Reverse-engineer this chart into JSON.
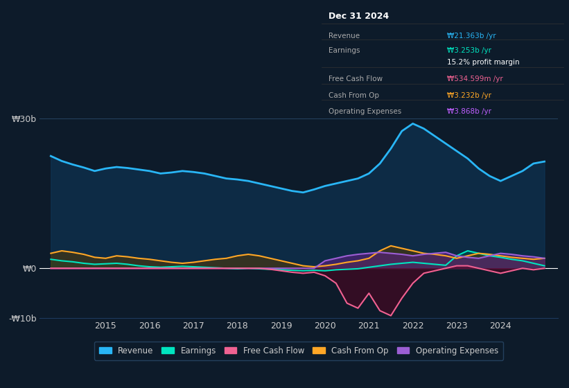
{
  "bg_color": "#0d1b2a",
  "plot_bg_color": "#0d1b2a",
  "grid_color": "#1e3a5f",
  "text_color": "#cccccc",
  "title_box": {
    "date": "Dec 31 2024",
    "rows": [
      {
        "label": "Revenue",
        "value": "₩21.363b /yr",
        "value_color": "#29b6f6"
      },
      {
        "label": "Earnings",
        "value": "₩3.253b /yr",
        "value_color": "#00e5c0"
      },
      {
        "label": "",
        "value": "15.2% profit margin",
        "value_color": "#ffffff"
      },
      {
        "label": "Free Cash Flow",
        "value": "₩534.599m /yr",
        "value_color": "#f06292"
      },
      {
        "label": "Cash From Op",
        "value": "₩3.232b /yr",
        "value_color": "#ffa726"
      },
      {
        "label": "Operating Expenses",
        "value": "₩3.868b /yr",
        "value_color": "#bf5fff"
      }
    ]
  },
  "ylim": [
    -10,
    32
  ],
  "yticks": [
    -10,
    0,
    30
  ],
  "ytick_labels": [
    "-₩10b",
    "₩0",
    "₩30b"
  ],
  "xlim_start": 2013.5,
  "xlim_end": 2025.3,
  "xticks": [
    2015,
    2016,
    2017,
    2018,
    2019,
    2020,
    2021,
    2022,
    2023,
    2024
  ],
  "revenue_color": "#29b6f6",
  "earnings_color": "#00e5c0",
  "fcf_color": "#f06292",
  "cashop_color": "#ffa726",
  "opex_color": "#9c5fd4",
  "legend": [
    {
      "label": "Revenue",
      "color": "#29b6f6"
    },
    {
      "label": "Earnings",
      "color": "#00e5c0"
    },
    {
      "label": "Free Cash Flow",
      "color": "#f06292"
    },
    {
      "label": "Cash From Op",
      "color": "#ffa726"
    },
    {
      "label": "Operating Expenses",
      "color": "#9c5fd4"
    }
  ],
  "revenue": {
    "x": [
      2013.75,
      2014.0,
      2014.25,
      2014.5,
      2014.75,
      2015.0,
      2015.25,
      2015.5,
      2015.75,
      2016.0,
      2016.25,
      2016.5,
      2016.75,
      2017.0,
      2017.25,
      2017.5,
      2017.75,
      2018.0,
      2018.25,
      2018.5,
      2018.75,
      2019.0,
      2019.25,
      2019.5,
      2019.75,
      2020.0,
      2020.25,
      2020.5,
      2020.75,
      2021.0,
      2021.25,
      2021.5,
      2021.75,
      2022.0,
      2022.25,
      2022.5,
      2022.75,
      2023.0,
      2023.25,
      2023.5,
      2023.75,
      2024.0,
      2024.25,
      2024.5,
      2024.75,
      2025.0
    ],
    "y": [
      22.5,
      21.5,
      20.8,
      20.2,
      19.5,
      20.0,
      20.3,
      20.1,
      19.8,
      19.5,
      19.0,
      19.2,
      19.5,
      19.3,
      19.0,
      18.5,
      18.0,
      17.8,
      17.5,
      17.0,
      16.5,
      16.0,
      15.5,
      15.2,
      15.8,
      16.5,
      17.0,
      17.5,
      18.0,
      19.0,
      21.0,
      24.0,
      27.5,
      29.0,
      28.0,
      26.5,
      25.0,
      23.5,
      22.0,
      20.0,
      18.5,
      17.5,
      18.5,
      19.5,
      21.0,
      21.4
    ]
  },
  "earnings": {
    "x": [
      2013.75,
      2014.0,
      2014.25,
      2014.5,
      2014.75,
      2015.0,
      2015.25,
      2015.5,
      2015.75,
      2016.0,
      2016.25,
      2016.5,
      2016.75,
      2017.0,
      2017.25,
      2017.5,
      2017.75,
      2018.0,
      2018.25,
      2018.5,
      2018.75,
      2019.0,
      2019.25,
      2019.5,
      2019.75,
      2020.0,
      2020.25,
      2020.5,
      2020.75,
      2021.0,
      2021.25,
      2021.5,
      2021.75,
      2022.0,
      2022.25,
      2022.5,
      2022.75,
      2023.0,
      2023.25,
      2023.5,
      2023.75,
      2024.0,
      2024.25,
      2024.5,
      2024.75,
      2025.0
    ],
    "y": [
      1.8,
      1.5,
      1.3,
      1.0,
      0.8,
      0.9,
      1.0,
      0.8,
      0.5,
      0.3,
      0.2,
      0.3,
      0.4,
      0.3,
      0.2,
      0.1,
      0.0,
      -0.1,
      0.0,
      -0.1,
      -0.2,
      -0.3,
      -0.4,
      -0.5,
      -0.4,
      -0.5,
      -0.3,
      -0.2,
      -0.1,
      0.2,
      0.5,
      0.8,
      1.0,
      1.2,
      1.0,
      0.8,
      0.6,
      2.5,
      3.5,
      3.0,
      2.5,
      2.2,
      1.8,
      1.5,
      1.0,
      0.5
    ]
  },
  "fcf": {
    "x": [
      2013.75,
      2014.0,
      2014.25,
      2014.5,
      2014.75,
      2015.0,
      2015.25,
      2015.5,
      2015.75,
      2016.0,
      2016.25,
      2016.5,
      2016.75,
      2017.0,
      2017.25,
      2017.5,
      2017.75,
      2018.0,
      2018.25,
      2018.5,
      2018.75,
      2019.0,
      2019.25,
      2019.5,
      2019.75,
      2020.0,
      2020.25,
      2020.5,
      2020.75,
      2021.0,
      2021.25,
      2021.5,
      2021.75,
      2022.0,
      2022.25,
      2022.5,
      2022.75,
      2023.0,
      2023.25,
      2023.5,
      2023.75,
      2024.0,
      2024.25,
      2024.5,
      2024.75,
      2025.0
    ],
    "y": [
      0.0,
      0.0,
      0.0,
      0.0,
      0.0,
      0.0,
      0.0,
      0.0,
      0.0,
      0.0,
      0.0,
      0.0,
      0.0,
      0.0,
      0.0,
      0.0,
      0.0,
      0.0,
      0.0,
      0.0,
      -0.2,
      -0.5,
      -0.8,
      -1.0,
      -0.8,
      -1.5,
      -3.0,
      -7.0,
      -8.0,
      -5.0,
      -8.5,
      -9.5,
      -6.0,
      -3.0,
      -1.0,
      -0.5,
      0.0,
      0.5,
      0.5,
      0.0,
      -0.5,
      -1.0,
      -0.5,
      0.0,
      -0.3,
      0.0
    ]
  },
  "cashop": {
    "x": [
      2013.75,
      2014.0,
      2014.25,
      2014.5,
      2014.75,
      2015.0,
      2015.25,
      2015.5,
      2015.75,
      2016.0,
      2016.25,
      2016.5,
      2016.75,
      2017.0,
      2017.25,
      2017.5,
      2017.75,
      2018.0,
      2018.25,
      2018.5,
      2018.75,
      2019.0,
      2019.25,
      2019.5,
      2019.75,
      2020.0,
      2020.25,
      2020.5,
      2020.75,
      2021.0,
      2021.25,
      2021.5,
      2021.75,
      2022.0,
      2022.25,
      2022.5,
      2022.75,
      2023.0,
      2023.25,
      2023.5,
      2023.75,
      2024.0,
      2024.25,
      2024.5,
      2024.75,
      2025.0
    ],
    "y": [
      3.0,
      3.5,
      3.2,
      2.8,
      2.2,
      2.0,
      2.5,
      2.3,
      2.0,
      1.8,
      1.5,
      1.2,
      1.0,
      1.2,
      1.5,
      1.8,
      2.0,
      2.5,
      2.8,
      2.5,
      2.0,
      1.5,
      1.0,
      0.5,
      0.3,
      0.5,
      0.8,
      1.2,
      1.5,
      2.0,
      3.5,
      4.5,
      4.0,
      3.5,
      3.0,
      2.8,
      2.5,
      2.0,
      2.5,
      3.0,
      2.8,
      2.5,
      2.2,
      2.0,
      1.8,
      2.0
    ]
  },
  "opex": {
    "x": [
      2013.75,
      2014.0,
      2014.25,
      2014.5,
      2014.75,
      2015.0,
      2015.25,
      2015.5,
      2015.75,
      2016.0,
      2016.25,
      2016.5,
      2016.75,
      2017.0,
      2017.25,
      2017.5,
      2017.75,
      2018.0,
      2018.25,
      2018.5,
      2018.75,
      2019.0,
      2019.25,
      2019.5,
      2019.75,
      2020.0,
      2020.25,
      2020.5,
      2020.75,
      2021.0,
      2021.25,
      2021.5,
      2021.75,
      2022.0,
      2022.25,
      2022.5,
      2022.75,
      2023.0,
      2023.25,
      2023.5,
      2023.75,
      2024.0,
      2024.25,
      2024.5,
      2024.75,
      2025.0
    ],
    "y": [
      0.0,
      0.0,
      0.0,
      0.0,
      0.0,
      0.0,
      0.0,
      0.0,
      0.0,
      0.0,
      0.0,
      0.0,
      0.0,
      0.0,
      0.0,
      0.0,
      0.0,
      0.0,
      0.0,
      0.0,
      0.0,
      0.0,
      0.0,
      0.0,
      0.0,
      1.5,
      2.0,
      2.5,
      2.8,
      3.0,
      3.2,
      3.0,
      2.8,
      2.5,
      2.8,
      3.0,
      3.2,
      2.5,
      2.2,
      2.0,
      2.5,
      3.0,
      2.8,
      2.5,
      2.3,
      2.0
    ]
  }
}
